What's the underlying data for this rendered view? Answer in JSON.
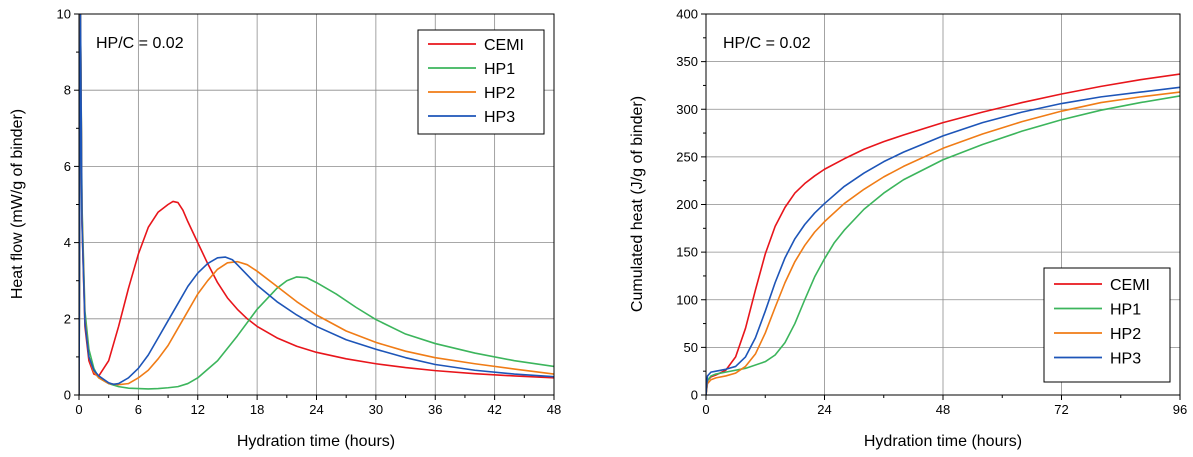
{
  "chart_data": [
    {
      "type": "line",
      "ylabel": "Heat flow (mW/g of binder)",
      "xlabel": "Hydration time (hours)",
      "annotation": "HP/C = 0.02",
      "xlim": [
        0,
        48
      ],
      "ylim": [
        0,
        10
      ],
      "xticks": [
        "0",
        "6",
        "12",
        "18",
        "24",
        "30",
        "36",
        "42",
        "48"
      ],
      "yticks": [
        "0",
        "2",
        "4",
        "6",
        "8",
        "10"
      ],
      "grid": true,
      "legend_position": "top-right",
      "series": [
        {
          "name": "CEMI",
          "color": "#e8151b",
          "x": [
            0,
            0.15,
            0.3,
            0.6,
            1,
            1.5,
            2,
            3,
            4,
            5,
            6,
            7,
            8,
            9,
            9.5,
            10,
            10.5,
            11,
            12,
            13,
            14,
            15,
            16,
            17,
            18,
            20,
            22,
            24,
            27,
            30,
            33,
            36,
            40,
            44,
            48
          ],
          "y": [
            0,
            10,
            4.5,
            1.8,
            0.9,
            0.55,
            0.5,
            0.9,
            1.8,
            2.8,
            3.7,
            4.4,
            4.8,
            5.0,
            5.08,
            5.05,
            4.85,
            4.55,
            4.0,
            3.45,
            2.95,
            2.55,
            2.25,
            2.0,
            1.8,
            1.5,
            1.28,
            1.12,
            0.95,
            0.82,
            0.72,
            0.64,
            0.56,
            0.5,
            0.45
          ]
        },
        {
          "name": "HP1",
          "color": "#3cb55c",
          "x": [
            0,
            0.15,
            0.3,
            0.6,
            1,
            1.5,
            2,
            3,
            4,
            5,
            6,
            7,
            8,
            9,
            10,
            11,
            12,
            14,
            16,
            18,
            20,
            21,
            22,
            23,
            24,
            26,
            28,
            30,
            33,
            36,
            40,
            44,
            48
          ],
          "y": [
            0,
            10,
            5.0,
            2.2,
            1.2,
            0.7,
            0.45,
            0.3,
            0.22,
            0.18,
            0.17,
            0.16,
            0.17,
            0.19,
            0.22,
            0.3,
            0.45,
            0.9,
            1.55,
            2.25,
            2.8,
            3.0,
            3.1,
            3.08,
            2.95,
            2.65,
            2.3,
            1.98,
            1.6,
            1.35,
            1.1,
            0.9,
            0.75
          ]
        },
        {
          "name": "HP2",
          "color": "#f07c16",
          "x": [
            0,
            0.15,
            0.3,
            0.6,
            1,
            1.5,
            2,
            3,
            4,
            5,
            6,
            7,
            8,
            9,
            10,
            11,
            12,
            13,
            14,
            15,
            16,
            17,
            18,
            20,
            22,
            24,
            27,
            30,
            33,
            36,
            40,
            44,
            48
          ],
          "y": [
            0,
            10,
            4.8,
            2.0,
            1.0,
            0.6,
            0.45,
            0.3,
            0.27,
            0.3,
            0.45,
            0.65,
            0.95,
            1.3,
            1.75,
            2.2,
            2.65,
            3.0,
            3.3,
            3.47,
            3.5,
            3.42,
            3.25,
            2.85,
            2.45,
            2.1,
            1.68,
            1.38,
            1.15,
            0.98,
            0.82,
            0.68,
            0.55
          ]
        },
        {
          "name": "HP3",
          "color": "#1d55b8",
          "x": [
            0,
            0.15,
            0.3,
            0.6,
            1,
            1.5,
            2,
            3,
            3.5,
            4,
            5,
            6,
            7,
            8,
            9,
            10,
            11,
            12,
            13,
            14,
            14.8,
            15.5,
            16,
            17,
            18,
            20,
            22,
            24,
            27,
            30,
            33,
            36,
            40,
            44,
            48
          ],
          "y": [
            0,
            10,
            4.6,
            1.9,
            1.0,
            0.65,
            0.5,
            0.32,
            0.28,
            0.3,
            0.45,
            0.7,
            1.05,
            1.5,
            1.95,
            2.4,
            2.85,
            3.2,
            3.45,
            3.6,
            3.62,
            3.55,
            3.42,
            3.15,
            2.88,
            2.45,
            2.1,
            1.8,
            1.45,
            1.2,
            0.98,
            0.8,
            0.65,
            0.55,
            0.48
          ]
        }
      ]
    },
    {
      "type": "line",
      "ylabel": "Cumulated heat (J/g of binder)",
      "xlabel": "Hydration time (hours)",
      "annotation": "HP/C = 0.02",
      "xlim": [
        0,
        96
      ],
      "ylim": [
        0,
        400
      ],
      "xticks": [
        "0",
        "24",
        "48",
        "72",
        "96"
      ],
      "yticks": [
        "0",
        "50",
        "100",
        "150",
        "200",
        "250",
        "300",
        "350",
        "400"
      ],
      "grid": true,
      "legend_position": "bottom-right",
      "series": [
        {
          "name": "CEMI",
          "color": "#e8151b",
          "x": [
            0,
            0.3,
            1,
            2,
            4,
            6,
            8,
            10,
            12,
            14,
            16,
            18,
            20,
            22,
            24,
            28,
            32,
            36,
            40,
            48,
            56,
            64,
            72,
            80,
            88,
            96
          ],
          "y": [
            0,
            15,
            19,
            21,
            26,
            40,
            70,
            110,
            148,
            177,
            197,
            212,
            222,
            230,
            237,
            248,
            258,
            266,
            273,
            286,
            297,
            307,
            316,
            324,
            331,
            337
          ]
        },
        {
          "name": "HP1",
          "color": "#3cb55c",
          "x": [
            0,
            0.3,
            1,
            2,
            4,
            8,
            12,
            14,
            16,
            18,
            20,
            22,
            24,
            26,
            28,
            32,
            36,
            40,
            48,
            56,
            64,
            72,
            80,
            88,
            96
          ],
          "y": [
            0,
            15,
            20,
            22,
            24,
            28,
            35,
            42,
            55,
            75,
            100,
            124,
            143,
            160,
            173,
            195,
            212,
            226,
            247,
            263,
            277,
            289,
            299,
            307,
            314
          ]
        },
        {
          "name": "HP2",
          "color": "#f07c16",
          "x": [
            0,
            0.3,
            1,
            2,
            4,
            6,
            8,
            10,
            12,
            14,
            16,
            18,
            20,
            22,
            24,
            28,
            32,
            36,
            40,
            48,
            56,
            64,
            72,
            80,
            88,
            96
          ],
          "y": [
            0,
            12,
            16,
            18,
            20,
            23,
            30,
            43,
            65,
            92,
            118,
            140,
            157,
            171,
            182,
            201,
            216,
            229,
            240,
            259,
            274,
            287,
            298,
            307,
            313,
            318
          ]
        },
        {
          "name": "HP3",
          "color": "#1d55b8",
          "x": [
            0,
            0.3,
            1,
            2,
            4,
            6,
            8,
            10,
            12,
            14,
            16,
            18,
            20,
            22,
            24,
            28,
            32,
            36,
            40,
            48,
            56,
            64,
            72,
            80,
            88,
            96
          ],
          "y": [
            0,
            20,
            24,
            25,
            27,
            30,
            40,
            60,
            88,
            118,
            144,
            164,
            179,
            191,
            201,
            219,
            233,
            245,
            255,
            272,
            286,
            297,
            306,
            313,
            318,
            323
          ]
        }
      ]
    }
  ]
}
